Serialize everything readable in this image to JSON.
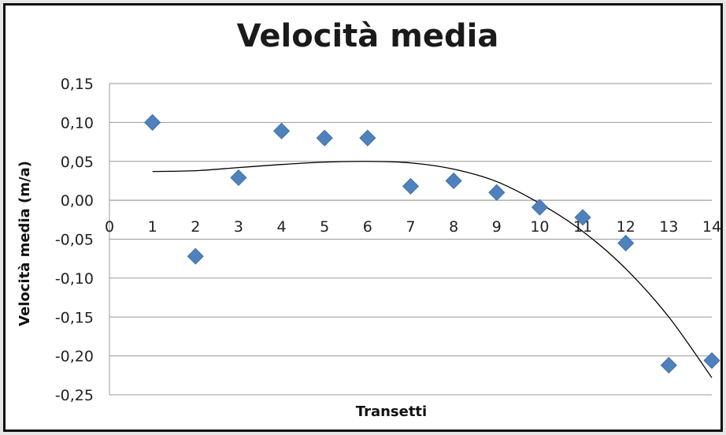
{
  "chart_data": {
    "type": "scatter",
    "title": "Velocità media",
    "xlabel": "Transetti",
    "ylabel": "Velocità media (m/a)",
    "xlim": [
      0,
      14
    ],
    "ylim": [
      -0.25,
      0.15
    ],
    "x_ticks": [
      "0",
      "1",
      "2",
      "3",
      "4",
      "5",
      "6",
      "7",
      "8",
      "9",
      "10",
      "11",
      "12",
      "13",
      "14"
    ],
    "y_ticks": [
      "0,15",
      "0,10",
      "0,05",
      "0,00",
      "-0,05",
      "-0,10",
      "-0,15",
      "-0,20",
      "-0,25"
    ],
    "grid": "horizontal",
    "legend": "none",
    "series": [
      {
        "marker": "diamond",
        "color": "#4f81bd",
        "x": [
          1,
          2,
          3,
          4,
          5,
          6,
          7,
          8,
          9,
          10,
          11,
          12,
          13,
          14
        ],
        "y": [
          0.1,
          -0.072,
          0.029,
          0.089,
          0.08,
          0.08,
          0.018,
          0.025,
          0.01,
          -0.009,
          -0.022,
          -0.055,
          -0.212,
          -0.206
        ]
      }
    ],
    "trendline": {
      "type": "polynomial",
      "color": "#000000",
      "x": [
        1,
        2,
        3,
        4,
        5,
        6,
        7,
        8,
        9,
        10,
        11,
        12,
        13,
        14
      ],
      "y": [
        0.037,
        0.038,
        0.042,
        0.046,
        0.049,
        0.05,
        0.048,
        0.04,
        0.024,
        -0.004,
        -0.04,
        -0.088,
        -0.15,
        -0.228
      ]
    }
  }
}
